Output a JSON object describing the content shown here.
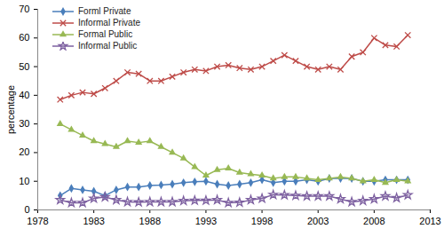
{
  "chart_data": {
    "type": "line",
    "y_label": "percentage",
    "legend": "top-left",
    "grid": false,
    "xlim": [
      1978,
      2013
    ],
    "xticks": [
      1978,
      1983,
      1988,
      1993,
      1998,
      2003,
      2008,
      2013
    ],
    "ylim": [
      0,
      70
    ],
    "yticks": [
      0,
      10,
      20,
      30,
      40,
      50,
      60,
      70
    ],
    "x": [
      1980,
      1981,
      1982,
      1983,
      1984,
      1985,
      1986,
      1987,
      1988,
      1989,
      1990,
      1991,
      1992,
      1993,
      1994,
      1995,
      1996,
      1997,
      1998,
      1999,
      2000,
      2001,
      2002,
      2003,
      2004,
      2005,
      2006,
      2007,
      2008,
      2009,
      2010,
      2011
    ],
    "series": [
      {
        "name": "Forml Private",
        "color": "#4a7ebb",
        "marker": "diamond",
        "values": [
          5,
          7.5,
          7,
          6.5,
          5,
          7,
          8,
          8,
          8.5,
          8.7,
          9,
          9.5,
          9.8,
          10,
          9,
          8.5,
          9,
          9.5,
          10.5,
          9.5,
          10,
          10,
          10.5,
          10,
          11,
          11,
          11,
          10,
          10,
          10.5,
          10.5,
          10.5
        ]
      },
      {
        "name": "Informal Private",
        "color": "#be4b48",
        "marker": "x",
        "values": [
          38.5,
          40,
          41,
          40.5,
          42.5,
          45,
          48,
          47.5,
          45,
          45,
          46.5,
          48,
          49,
          48.5,
          50,
          50.5,
          49.5,
          49,
          50,
          52,
          54,
          52,
          50,
          49,
          50,
          49,
          53.5,
          55,
          60,
          57.5,
          57,
          61
        ]
      },
      {
        "name": "Formal Public",
        "color": "#98b954",
        "marker": "triangle",
        "values": [
          30,
          28,
          26,
          24,
          23,
          22,
          24,
          23.5,
          24,
          22,
          20,
          18,
          15,
          12,
          14,
          14.5,
          13,
          12.5,
          12,
          11,
          11.5,
          11.5,
          11,
          10.5,
          11,
          11.5,
          11,
          10,
          10.5,
          9.5,
          10.5,
          10
        ]
      },
      {
        "name": "Informal Public",
        "color": "#7d60a0",
        "marker": "star",
        "values": [
          3.5,
          2.5,
          2.5,
          4,
          4.5,
          3.5,
          2.8,
          2.7,
          2.8,
          2.8,
          2.8,
          3.2,
          3.3,
          3.3,
          3.5,
          2.5,
          2.6,
          3.5,
          4,
          5.3,
          5.2,
          5,
          4.8,
          4.8,
          4.8,
          3.8,
          2.8,
          3.2,
          3.8,
          4.8,
          4.2,
          5.2
        ]
      }
    ]
  }
}
